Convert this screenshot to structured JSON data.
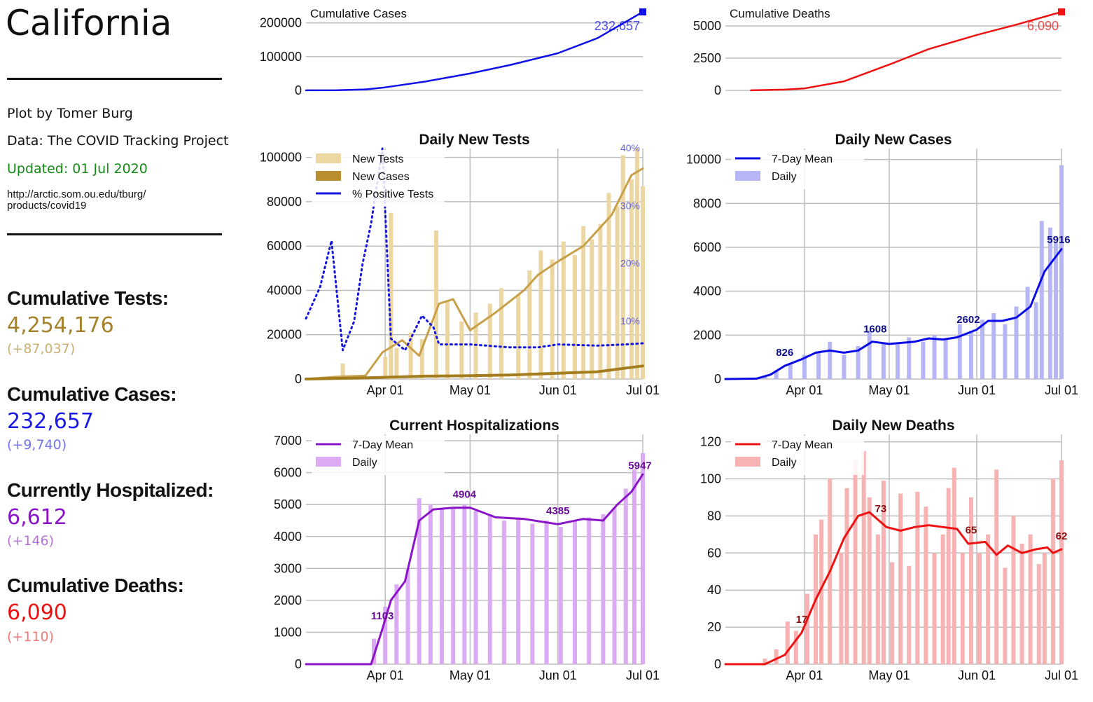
{
  "sidebar": {
    "title": "California",
    "credit": "Plot by Tomer Burg",
    "source": "Data: The COVID Tracking Project",
    "updated": "Updated: 01 Jul 2020",
    "url": "http://arctic.som.ou.edu/tburg/ products/covid19",
    "colors": {
      "updated": "#138a13"
    },
    "stats": [
      {
        "label": "Cumulative Tests:",
        "value": "4,254,176",
        "delta": "(+87,037)",
        "color": "#a6832a",
        "delta_color": "#cbb172"
      },
      {
        "label": "Cumulative Cases:",
        "value": "232,657",
        "delta": "(+9,740)",
        "color": "#1a1ae6",
        "delta_color": "#7373f0"
      },
      {
        "label": "Currently Hospitalized:",
        "value": "6,612",
        "delta": "(+146)",
        "color": "#8a14c7",
        "delta_color": "#b673dd"
      },
      {
        "label": "Cumulative Deaths:",
        "value": "6,090",
        "delta": "(+110)",
        "color": "#ee1111",
        "delta_color": "#f07878"
      }
    ]
  },
  "chart_data": [
    {
      "id": "cum_cases",
      "type": "line",
      "title": "Cumulative Cases",
      "x_range": [
        "2020-03-04",
        "2020-07-01"
      ],
      "y_ticks": [
        0,
        100000,
        200000
      ],
      "ylim": [
        0,
        232657
      ],
      "color": "#1010e8",
      "x": [
        "2020-03-04",
        "2020-03-15",
        "2020-03-25",
        "2020-04-01",
        "2020-04-15",
        "2020-05-01",
        "2020-05-15",
        "2020-06-01",
        "2020-06-15",
        "2020-07-01"
      ],
      "values": [
        200,
        600,
        3000,
        9000,
        26000,
        50000,
        75000,
        110000,
        155000,
        232657
      ],
      "end_label": "232,657"
    },
    {
      "id": "cum_deaths",
      "type": "line",
      "title": "Cumulative Deaths",
      "x_range": [
        "2020-03-04",
        "2020-07-01"
      ],
      "y_ticks": [
        0,
        2500,
        5000
      ],
      "ylim": [
        0,
        6090
      ],
      "color": "#ee1111",
      "x": [
        "2020-03-13",
        "2020-03-25",
        "2020-04-01",
        "2020-04-15",
        "2020-05-01",
        "2020-05-15",
        "2020-06-01",
        "2020-06-15",
        "2020-07-01"
      ],
      "values": [
        5,
        60,
        150,
        700,
        2000,
        3200,
        4300,
        5100,
        6090
      ],
      "end_label": "6,090"
    },
    {
      "id": "daily_tests",
      "type": "bar",
      "title": "Daily New Tests",
      "x_range": [
        "2020-03-04",
        "2020-07-01"
      ],
      "x_ticks": [
        "Apr 01",
        "May 01",
        "Jun 01",
        "Jul 01"
      ],
      "y_ticks": [
        0,
        20000,
        40000,
        60000,
        80000,
        100000
      ],
      "ylim": [
        0,
        104000
      ],
      "right_ticks": [
        "10%",
        "20%",
        "30%",
        "40%"
      ],
      "right_ylim": [
        0,
        40
      ],
      "legend": [
        "New Tests",
        "New Cases",
        "%  Positive Tests"
      ],
      "colors": {
        "bars": "#ecd7a3",
        "tests_mean": "#c9a04a",
        "cases": "#a37d1e",
        "cases_bars": "#b88f2c",
        "positive": "#1515e0"
      },
      "tests_mean": {
        "x": [
          "2020-03-04",
          "2020-03-15",
          "2020-03-25",
          "2020-03-31",
          "2020-04-07",
          "2020-04-13",
          "2020-04-20",
          "2020-04-25",
          "2020-05-01",
          "2020-05-10",
          "2020-05-20",
          "2020-05-25",
          "2020-06-01",
          "2020-06-10",
          "2020-06-20",
          "2020-06-27",
          "2020-07-01"
        ],
        "values": [
          0,
          1000,
          1500,
          12000,
          17500,
          10500,
          34000,
          36000,
          22000,
          30000,
          40000,
          47000,
          53000,
          60000,
          74000,
          92000,
          95000
        ]
      },
      "cases_mean": {
        "x": [
          "2020-03-04",
          "2020-03-25",
          "2020-04-15",
          "2020-05-01",
          "2020-05-15",
          "2020-06-01",
          "2020-06-15",
          "2020-07-01"
        ],
        "values": [
          0,
          500,
          1300,
          1500,
          1800,
          2600,
          3300,
          5900
        ]
      },
      "positive_pct": {
        "x": [
          "2020-03-04",
          "2020-03-09",
          "2020-03-13",
          "2020-03-17",
          "2020-03-21",
          "2020-03-24",
          "2020-03-27",
          "2020-03-31",
          "2020-04-03",
          "2020-04-08",
          "2020-04-14",
          "2020-04-18",
          "2020-04-20",
          "2020-04-25",
          "2020-05-01",
          "2020-05-15",
          "2020-05-25",
          "2020-06-01",
          "2020-06-15",
          "2020-06-25",
          "2020-07-01"
        ],
        "values": [
          10.5,
          16,
          24,
          5,
          10,
          20,
          27,
          40,
          7,
          5,
          11,
          9,
          6,
          6,
          6,
          5.5,
          5.5,
          6,
          5.8,
          6,
          6.2
        ]
      },
      "daily_tests_bars": [
        [
          "2020-03-17",
          7000
        ],
        [
          "2020-03-29",
          1000
        ],
        [
          "2020-04-01",
          10000
        ],
        [
          "2020-04-03",
          75000
        ],
        [
          "2020-04-05",
          14000
        ],
        [
          "2020-04-10",
          21000
        ],
        [
          "2020-04-14",
          18000
        ],
        [
          "2020-04-19",
          67000
        ],
        [
          "2020-04-23",
          35000
        ],
        [
          "2020-04-28",
          26000
        ],
        [
          "2020-05-03",
          30000
        ],
        [
          "2020-05-08",
          34000
        ],
        [
          "2020-05-12",
          41000
        ],
        [
          "2020-05-18",
          38000
        ],
        [
          "2020-05-22",
          49000
        ],
        [
          "2020-05-26",
          58000
        ],
        [
          "2020-05-30",
          54000
        ],
        [
          "2020-06-03",
          62000
        ],
        [
          "2020-06-07",
          56000
        ],
        [
          "2020-06-10",
          69000
        ],
        [
          "2020-06-13",
          63000
        ],
        [
          "2020-06-16",
          70000
        ],
        [
          "2020-06-19",
          84000
        ],
        [
          "2020-06-22",
          78000
        ],
        [
          "2020-06-24",
          101000
        ],
        [
          "2020-06-27",
          90000
        ],
        [
          "2020-06-29",
          104000
        ],
        [
          "2020-07-01",
          87000
        ]
      ]
    },
    {
      "id": "daily_cases",
      "type": "bar",
      "title": "Daily New Cases",
      "x_range": [
        "2020-03-04",
        "2020-07-01"
      ],
      "x_ticks": [
        "Apr 01",
        "May 01",
        "Jun 01",
        "Jul 01"
      ],
      "y_ticks": [
        0,
        2000,
        4000,
        6000,
        8000,
        10000
      ],
      "ylim": [
        0,
        10500
      ],
      "legend": [
        "7-Day Mean",
        "Daily"
      ],
      "colors": {
        "bars": "#b6b6f6",
        "mean": "#0a0ae6",
        "annot": "#0d0d8a"
      },
      "mean": {
        "x": [
          "2020-03-04",
          "2020-03-15",
          "2020-03-20",
          "2020-03-25",
          "2020-03-31",
          "2020-04-05",
          "2020-04-10",
          "2020-04-15",
          "2020-04-20",
          "2020-04-25",
          "2020-05-01",
          "2020-05-10",
          "2020-05-15",
          "2020-05-20",
          "2020-05-25",
          "2020-06-01",
          "2020-06-05",
          "2020-06-10",
          "2020-06-15",
          "2020-06-20",
          "2020-06-25",
          "2020-07-01"
        ],
        "values": [
          0,
          20,
          200,
          600,
          900,
          1200,
          1300,
          1200,
          1300,
          1700,
          1600,
          1700,
          1850,
          1800,
          1900,
          2250,
          2650,
          2650,
          2800,
          3300,
          4900,
          5916
        ]
      },
      "bars": [
        [
          "2020-03-18",
          150
        ],
        [
          "2020-03-22",
          400
        ],
        [
          "2020-03-27",
          700
        ],
        [
          "2020-04-01",
          1100
        ],
        [
          "2020-04-06",
          1200
        ],
        [
          "2020-04-10",
          1700
        ],
        [
          "2020-04-15",
          1100
        ],
        [
          "2020-04-20",
          1500
        ],
        [
          "2020-04-24",
          2200
        ],
        [
          "2020-04-29",
          1600
        ],
        [
          "2020-05-04",
          1600
        ],
        [
          "2020-05-08",
          1900
        ],
        [
          "2020-05-13",
          1700
        ],
        [
          "2020-05-17",
          2000
        ],
        [
          "2020-05-21",
          1800
        ],
        [
          "2020-05-26",
          2500
        ],
        [
          "2020-05-30",
          2200
        ],
        [
          "2020-06-03",
          2700
        ],
        [
          "2020-06-07",
          3000
        ],
        [
          "2020-06-11",
          2500
        ],
        [
          "2020-06-15",
          3300
        ],
        [
          "2020-06-19",
          4200
        ],
        [
          "2020-06-22",
          3500
        ],
        [
          "2020-06-24",
          7200
        ],
        [
          "2020-06-27",
          6900
        ],
        [
          "2020-06-29",
          6200
        ],
        [
          "2020-07-01",
          9740
        ]
      ],
      "annotations": [
        [
          "2020-03-25",
          "826"
        ],
        [
          "2020-04-26",
          "1608"
        ],
        [
          "2020-05-29",
          "2602"
        ],
        [
          "2020-06-30",
          "5916"
        ]
      ]
    },
    {
      "id": "hospitalizations",
      "type": "bar",
      "title": "Current Hospitalizations",
      "x_range": [
        "2020-03-04",
        "2020-07-01"
      ],
      "x_ticks": [
        "Apr 01",
        "May 01",
        "Jun 01",
        "Jul 01"
      ],
      "y_ticks": [
        0,
        1000,
        2000,
        3000,
        4000,
        5000,
        6000,
        7000
      ],
      "ylim": [
        0,
        7200
      ],
      "legend": [
        "7-Day Mean",
        "Daily"
      ],
      "colors": {
        "bars": "#dbaaf2",
        "mean": "#8a14c7",
        "annot": "#6a0d99"
      },
      "mean": {
        "x": [
          "2020-03-04",
          "2020-03-27",
          "2020-03-31",
          "2020-04-03",
          "2020-04-08",
          "2020-04-13",
          "2020-04-18",
          "2020-04-25",
          "2020-05-01",
          "2020-05-10",
          "2020-05-20",
          "2020-06-01",
          "2020-06-10",
          "2020-06-17",
          "2020-06-22",
          "2020-06-27",
          "2020-07-01"
        ],
        "values": [
          0,
          0,
          1103,
          2000,
          2600,
          4500,
          4850,
          4900,
          4904,
          4600,
          4550,
          4385,
          4550,
          4500,
          5000,
          5400,
          5947
        ]
      },
      "bars": [
        [
          "2020-03-28",
          800
        ],
        [
          "2020-04-01",
          1800
        ],
        [
          "2020-04-05",
          2500
        ],
        [
          "2020-04-09",
          3000
        ],
        [
          "2020-04-13",
          5200
        ],
        [
          "2020-04-17",
          5000
        ],
        [
          "2020-04-21",
          4900
        ],
        [
          "2020-04-25",
          4900
        ],
        [
          "2020-04-29",
          5000
        ],
        [
          "2020-05-03",
          4800
        ],
        [
          "2020-05-08",
          4700
        ],
        [
          "2020-05-13",
          4500
        ],
        [
          "2020-05-18",
          4600
        ],
        [
          "2020-05-23",
          4400
        ],
        [
          "2020-05-28",
          4500
        ],
        [
          "2020-06-02",
          4300
        ],
        [
          "2020-06-07",
          4500
        ],
        [
          "2020-06-12",
          4600
        ],
        [
          "2020-06-17",
          4700
        ],
        [
          "2020-06-21",
          4900
        ],
        [
          "2020-06-25",
          5500
        ],
        [
          "2020-06-28",
          6100
        ],
        [
          "2020-07-01",
          6612
        ]
      ],
      "annotations": [
        [
          "2020-03-31",
          "1103"
        ],
        [
          "2020-04-29",
          "4904"
        ],
        [
          "2020-06-01",
          "4385"
        ],
        [
          "2020-06-30",
          "5947"
        ]
      ]
    },
    {
      "id": "daily_deaths",
      "type": "bar",
      "title": "Daily New Deaths",
      "x_range": [
        "2020-03-04",
        "2020-07-01"
      ],
      "x_ticks": [
        "Apr 01",
        "May 01",
        "Jun 01",
        "Jul 01"
      ],
      "y_ticks": [
        0,
        20,
        40,
        60,
        80,
        100,
        120
      ],
      "ylim": [
        0,
        124
      ],
      "legend": [
        "7-Day Mean",
        "Daily"
      ],
      "colors": {
        "bars": "#f7b3b3",
        "mean": "#ee1111",
        "annot": "#8a0d0d"
      },
      "mean": {
        "x": [
          "2020-03-04",
          "2020-03-18",
          "2020-03-25",
          "2020-03-31",
          "2020-04-05",
          "2020-04-10",
          "2020-04-15",
          "2020-04-20",
          "2020-04-24",
          "2020-04-30",
          "2020-05-05",
          "2020-05-10",
          "2020-05-15",
          "2020-05-20",
          "2020-05-25",
          "2020-05-29",
          "2020-06-04",
          "2020-06-08",
          "2020-06-12",
          "2020-06-17",
          "2020-06-22",
          "2020-06-26",
          "2020-06-28",
          "2020-07-01"
        ],
        "values": [
          0,
          0,
          5,
          17,
          35,
          50,
          68,
          80,
          82,
          74,
          72,
          74,
          75,
          74,
          73,
          65,
          66,
          59,
          64,
          60,
          62,
          63,
          60,
          62
        ]
      },
      "bars": [
        [
          "2020-03-18",
          3
        ],
        [
          "2020-03-22",
          8
        ],
        [
          "2020-03-26",
          23
        ],
        [
          "2020-03-29",
          18
        ],
        [
          "2020-04-02",
          38
        ],
        [
          "2020-04-05",
          70
        ],
        [
          "2020-04-07",
          78
        ],
        [
          "2020-04-10",
          100
        ],
        [
          "2020-04-14",
          60
        ],
        [
          "2020-04-16",
          95
        ],
        [
          "2020-04-19",
          110
        ],
        [
          "2020-04-22",
          115
        ],
        [
          "2020-04-24",
          90
        ],
        [
          "2020-04-27",
          70
        ],
        [
          "2020-04-29",
          99
        ],
        [
          "2020-05-02",
          55
        ],
        [
          "2020-05-05",
          92
        ],
        [
          "2020-05-08",
          53
        ],
        [
          "2020-05-11",
          93
        ],
        [
          "2020-05-14",
          85
        ],
        [
          "2020-05-17",
          60
        ],
        [
          "2020-05-20",
          70
        ],
        [
          "2020-05-22",
          95
        ],
        [
          "2020-05-24",
          106
        ],
        [
          "2020-05-27",
          60
        ],
        [
          "2020-05-30",
          90
        ],
        [
          "2020-06-02",
          60
        ],
        [
          "2020-06-05",
          70
        ],
        [
          "2020-06-08",
          105
        ],
        [
          "2020-06-11",
          52
        ],
        [
          "2020-06-14",
          80
        ],
        [
          "2020-06-17",
          65
        ],
        [
          "2020-06-20",
          70
        ],
        [
          "2020-06-23",
          54
        ],
        [
          "2020-06-25",
          60
        ],
        [
          "2020-06-28",
          100
        ],
        [
          "2020-07-01",
          110
        ]
      ],
      "annotations": [
        [
          "2020-03-31",
          "17"
        ],
        [
          "2020-04-28",
          "73"
        ],
        [
          "2020-05-30",
          "65"
        ],
        [
          "2020-07-01",
          "62"
        ]
      ]
    }
  ]
}
